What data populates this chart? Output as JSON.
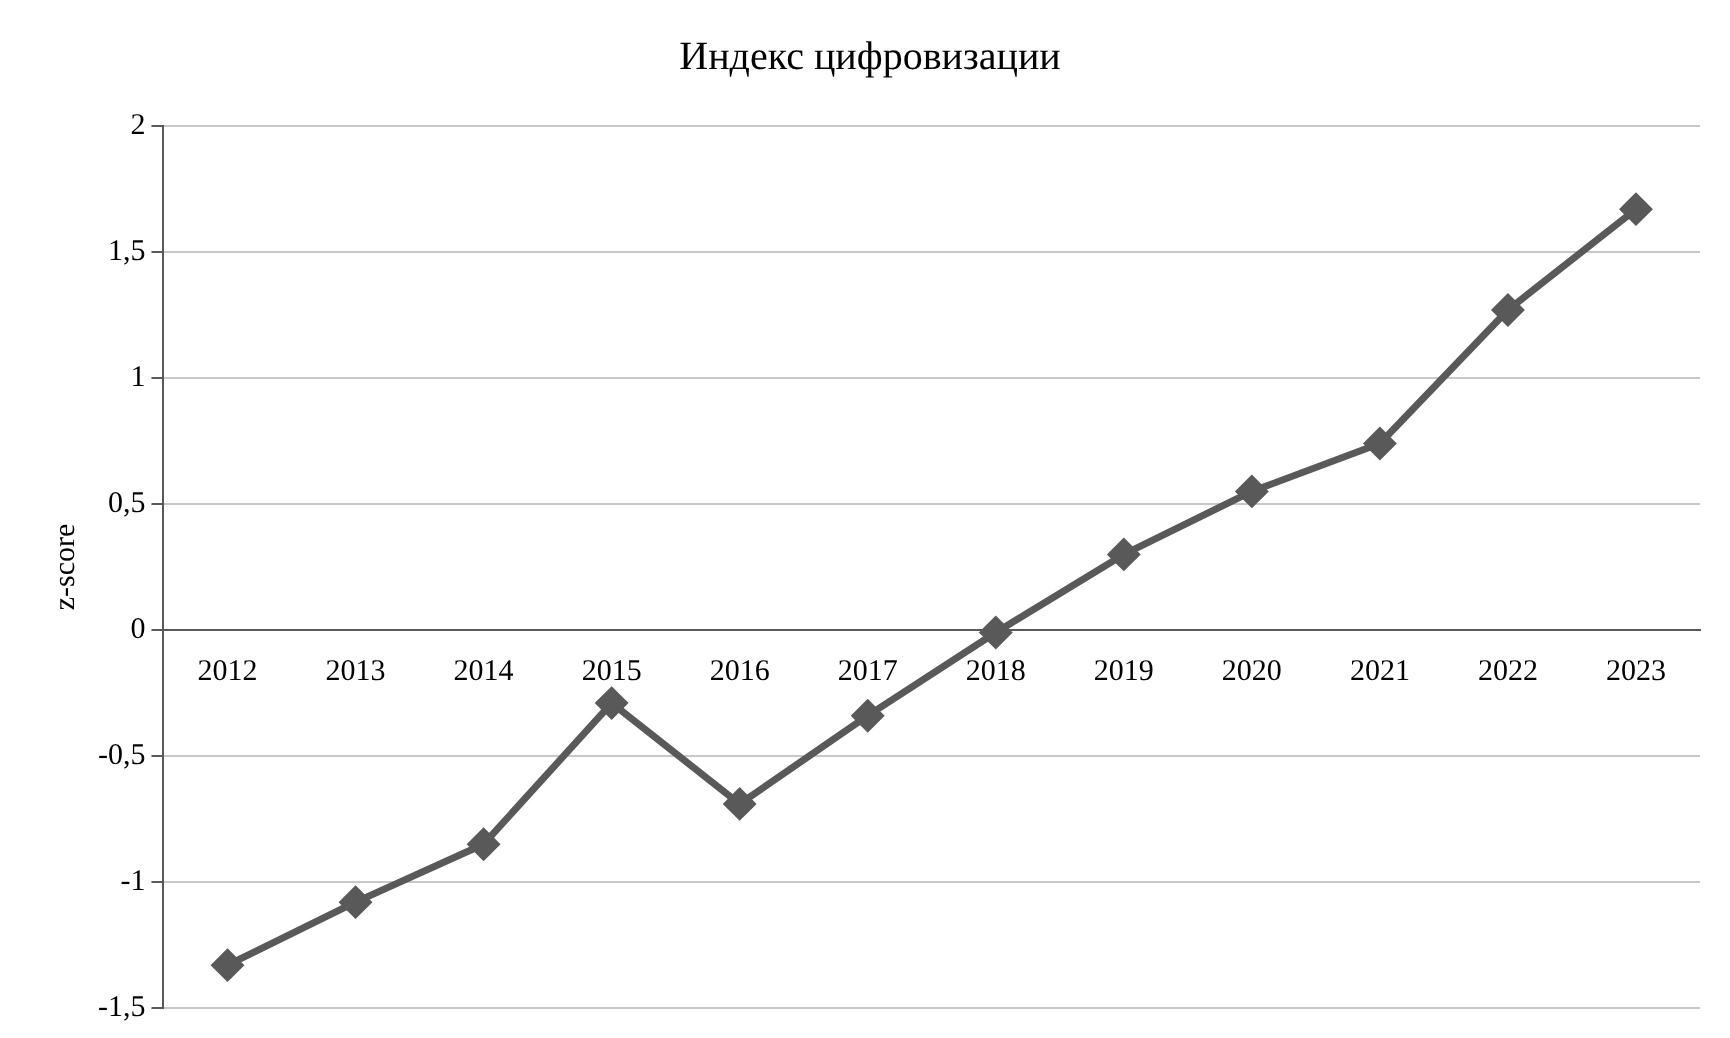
{
  "chart_data": {
    "type": "line",
    "title": "Индекс цифровизации",
    "ylabel": "z-score",
    "categories": [
      "2012",
      "2013",
      "2014",
      "2015",
      "2016",
      "2017",
      "2018",
      "2019",
      "2020",
      "2021",
      "2022",
      "2023"
    ],
    "series": [
      {
        "color": "#595959",
        "values": [
          -1.33,
          -1.08,
          -0.85,
          -0.29,
          -0.69,
          -0.34,
          -0.01,
          0.3,
          0.55,
          0.74,
          1.27,
          1.67
        ]
      }
    ],
    "ylim": [
      -1.5,
      2
    ],
    "yticks": [
      {
        "value": -1.5,
        "label": "-1,5"
      },
      {
        "value": -1,
        "label": "-1"
      },
      {
        "value": -0.5,
        "label": "-0,5"
      },
      {
        "value": 0,
        "label": "0"
      },
      {
        "value": 0.5,
        "label": "0,5"
      },
      {
        "value": 1,
        "label": "1"
      },
      {
        "value": 1.5,
        "label": "1,5"
      },
      {
        "value": 2,
        "label": "2"
      }
    ],
    "grid": "y",
    "legend": false,
    "marker": "diamond",
    "line_style": "solid"
  }
}
